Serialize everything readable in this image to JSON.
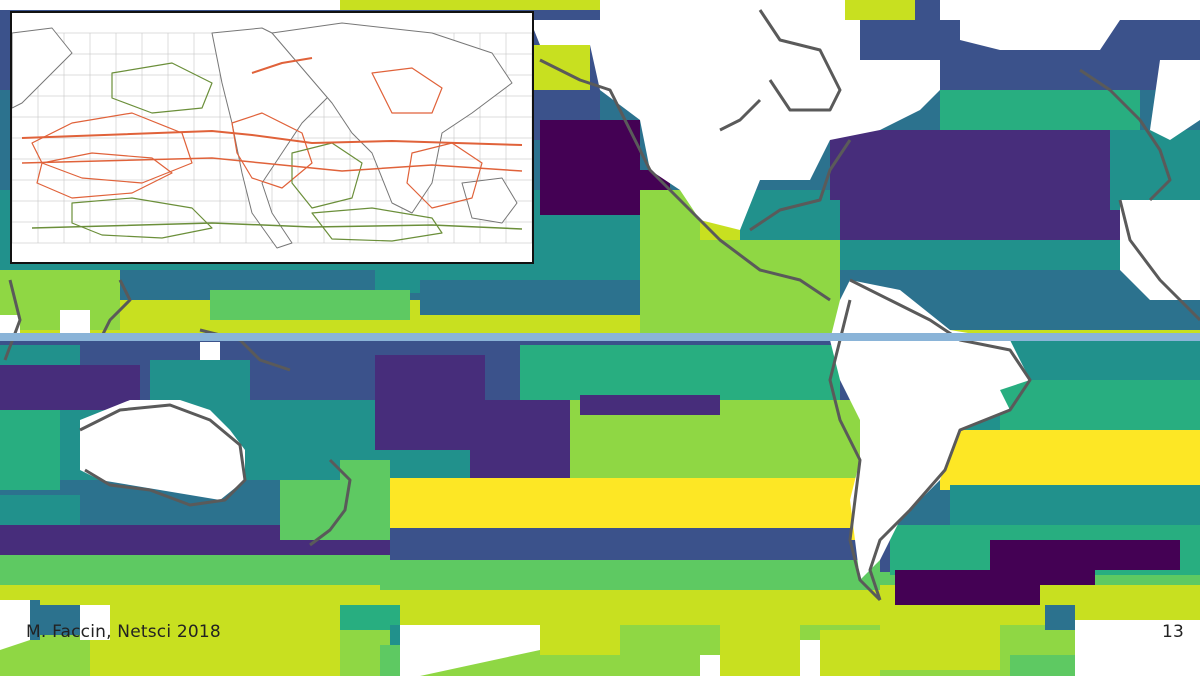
{
  "slide": {
    "author": "M. Faccin, Netsci 2018",
    "page_number": "13"
  },
  "map": {
    "palette": {
      "dark_purple": "#440154",
      "purple": "#472d7b",
      "indigo": "#3b528b",
      "steel_blue": "#2c728e",
      "teal": "#21918c",
      "green_teal": "#28ae80",
      "green": "#5ec962",
      "lime": "#8fd744",
      "yellow_green": "#c8e020",
      "yellow": "#fde725",
      "land": "#ffffff",
      "coastline": "#5a5a5a",
      "equator": "#8ab4d8"
    },
    "equator_line": true
  },
  "inset": {
    "description_icon": "ocean-currents-map",
    "current_colors": {
      "warm": "#e0623a",
      "cold": "#6b8f3a",
      "grid": "#bdbdbd"
    }
  }
}
